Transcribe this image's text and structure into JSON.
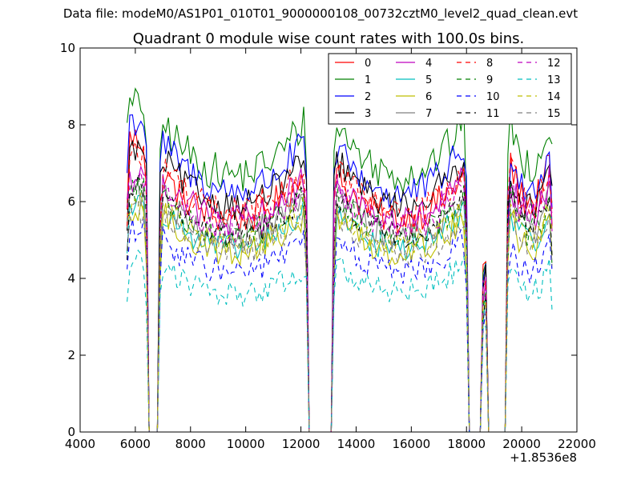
{
  "figure": {
    "suptitle": "Data file: modeM0/AS1P01_010T01_9000000108_00732cztM0_level2_quad_clean.evt"
  },
  "chart_data": {
    "type": "line",
    "title": "Quadrant 0 module wise count rates with 100.0s bins.",
    "xlabel": "",
    "ylabel": "",
    "x_offset_label": "+1.8536e8",
    "xlim": [
      4000,
      22000
    ],
    "ylim": [
      0,
      10
    ],
    "xticks": [
      4000,
      6000,
      8000,
      10000,
      12000,
      14000,
      16000,
      18000,
      20000,
      22000
    ],
    "xtick_labels": [
      "4000",
      "6000",
      "8000",
      "10000",
      "12000",
      "14000",
      "16000",
      "18000",
      "20000",
      "22000"
    ],
    "yticks": [
      0,
      2,
      4,
      6,
      8,
      10
    ],
    "ytick_labels": [
      "0",
      "2",
      "4",
      "6",
      "8",
      "10"
    ],
    "grid": false,
    "legend_position": "top-right",
    "legend_columns": 4,
    "bin_width": 100,
    "gaps": [
      [
        6500,
        6800
      ],
      [
        12300,
        13100
      ],
      [
        18100,
        18500
      ],
      [
        18700,
        19400
      ]
    ],
    "segments": [
      [
        5700,
        6400
      ],
      [
        6900,
        12200
      ],
      [
        13200,
        18000
      ],
      [
        18600,
        18700
      ],
      [
        19500,
        21100
      ]
    ],
    "series": [
      {
        "name": "0",
        "color": "#ff0000",
        "dash": "solid",
        "level": 6.4,
        "seg_levels": [
          7.6,
          6.4,
          6.4,
          4.5,
          6.9
        ],
        "noise": 0.45
      },
      {
        "name": "1",
        "color": "#008000",
        "dash": "solid",
        "level": 7.8,
        "seg_levels": [
          8.5,
          7.7,
          7.7,
          4.5,
          8.0
        ],
        "noise": 0.5
      },
      {
        "name": "2",
        "color": "#0000ff",
        "dash": "solid",
        "level": 7.1,
        "seg_levels": [
          8.1,
          7.2,
          7.1,
          4.5,
          7.3
        ],
        "noise": 0.45
      },
      {
        "name": "3",
        "color": "#000000",
        "dash": "solid",
        "level": 6.6,
        "seg_levels": [
          7.3,
          6.8,
          6.8,
          4.5,
          6.7
        ],
        "noise": 0.4
      },
      {
        "name": "4",
        "color": "#bf00bf",
        "dash": "solid",
        "level": 6.2,
        "seg_levels": [
          6.7,
          6.3,
          6.3,
          4.2,
          6.4
        ],
        "noise": 0.45
      },
      {
        "name": "5",
        "color": "#00bfbf",
        "dash": "solid",
        "level": 5.3,
        "seg_levels": [
          5.9,
          5.5,
          5.5,
          3.8,
          5.7
        ],
        "noise": 0.35
      },
      {
        "name": "6",
        "color": "#bfbf00",
        "dash": "solid",
        "level": 5.0,
        "seg_levels": [
          5.6,
          5.4,
          5.4,
          3.5,
          5.5
        ],
        "noise": 0.4
      },
      {
        "name": "7",
        "color": "#808080",
        "dash": "solid",
        "level": 5.8,
        "seg_levels": [
          6.2,
          5.9,
          5.9,
          3.8,
          6.0
        ],
        "noise": 0.4
      },
      {
        "name": "8",
        "color": "#ff0000",
        "dash": "dashed",
        "level": 6.5,
        "seg_levels": [
          7.2,
          6.6,
          6.5,
          4.2,
          6.8
        ],
        "noise": 0.45
      },
      {
        "name": "9",
        "color": "#008000",
        "dash": "dashed",
        "level": 5.7,
        "seg_levels": [
          6.3,
          5.9,
          5.9,
          3.9,
          6.0
        ],
        "noise": 0.4
      },
      {
        "name": "10",
        "color": "#0000ff",
        "dash": "dashed",
        "level": 4.7,
        "seg_levels": [
          5.2,
          4.8,
          4.8,
          3.4,
          4.8
        ],
        "noise": 0.35
      },
      {
        "name": "11",
        "color": "#000000",
        "dash": "dashed",
        "level": 5.8,
        "seg_levels": [
          6.4,
          5.9,
          5.9,
          3.9,
          6.2
        ],
        "noise": 0.35
      },
      {
        "name": "12",
        "color": "#bf00bf",
        "dash": "dashed",
        "level": 6.0,
        "seg_levels": [
          6.6,
          6.1,
          6.1,
          4.0,
          6.4
        ],
        "noise": 0.4
      },
      {
        "name": "13",
        "color": "#00bfbf",
        "dash": "dashed",
        "level": 3.9,
        "seg_levels": [
          4.4,
          4.1,
          4.2,
          3.0,
          4.2
        ],
        "noise": 0.35
      },
      {
        "name": "14",
        "color": "#bfbf00",
        "dash": "dashed",
        "level": 5.5,
        "seg_levels": [
          5.9,
          5.6,
          5.6,
          3.7,
          5.8
        ],
        "noise": 0.35
      },
      {
        "name": "15",
        "color": "#808080",
        "dash": "dashed",
        "level": 5.3,
        "seg_levels": [
          5.7,
          5.4,
          5.3,
          3.6,
          5.6
        ],
        "noise": 0.35
      }
    ]
  }
}
